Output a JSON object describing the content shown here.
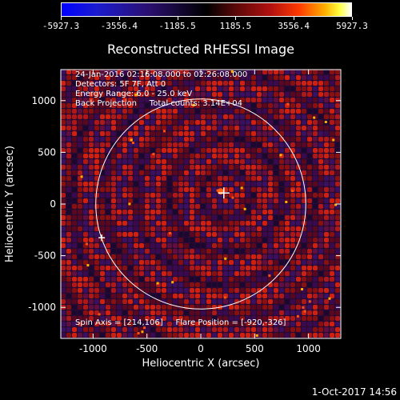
{
  "colorbar": {
    "labels": [
      "-5927.3",
      "-3556.4",
      "-1185.5",
      "1185.5",
      "3556.4",
      "5927.3"
    ],
    "colors": [
      "#0000ff",
      "#2a1070",
      "#000000",
      "#b01010",
      "#ffb000",
      "#ffffff"
    ]
  },
  "title": "Reconstructed RHESSI Image",
  "annotations": {
    "time": "24-Jan-2016 02:16:08.000 to 02:26:08.000",
    "detectors": "Detectors: 5F 7F, Att 0",
    "energy": "Energy Range: 6.0 - 25.0 keV",
    "method": "Back Projection     Total counts: 3.14E+04",
    "footer": "Spin Axis = [214,106]     Flare Position = [-920,-326]"
  },
  "axes": {
    "xlabel": "Heliocentric X (arcsec)",
    "ylabel": "Heliocentric Y (arcsec)",
    "xticks": [
      -1000,
      -500,
      0,
      500,
      1000
    ],
    "yticks": [
      -1000,
      -500,
      0,
      500,
      1000
    ],
    "xlim": [
      -1300,
      1300
    ],
    "ylim": [
      -1300,
      1300
    ]
  },
  "markers": {
    "flare_position": [
      -920,
      -326
    ],
    "spin_axis": [
      214,
      106
    ],
    "solar_limb_radius_arcsec": 975
  },
  "date_stamp": "1-Oct-2017 14:56"
}
